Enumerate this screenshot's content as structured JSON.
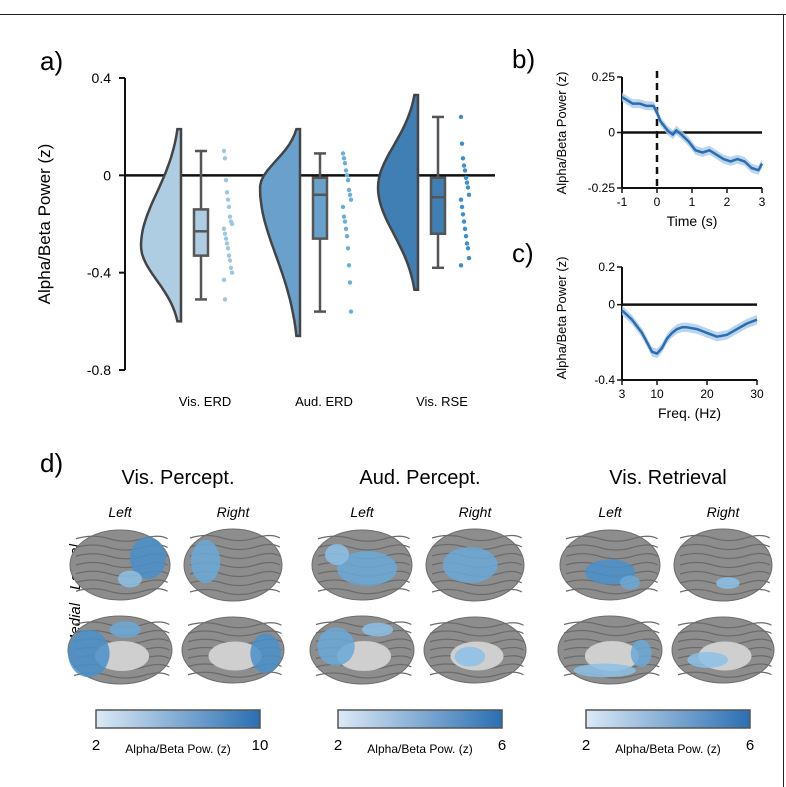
{
  "panels": {
    "a": {
      "label": "a)"
    },
    "b": {
      "label": "b)"
    },
    "c": {
      "label": "c)"
    },
    "d": {
      "label": "d)"
    }
  },
  "chart_data": [
    {
      "type": "violin-box-strip",
      "panel": "a",
      "ylabel": "Alpha/Beta Power (z)",
      "ylim": [
        -0.8,
        0.4
      ],
      "yticks": [
        0.4,
        0,
        -0.4,
        -0.8
      ],
      "ytick_labels": [
        "0.4",
        "0",
        "-0.4",
        "-0.8"
      ],
      "reference_line": 0,
      "categories": [
        "Vis. ERD",
        "Aud. ERD",
        "Vis. RSE"
      ],
      "colors": [
        "#aecde3",
        "#6aa1cc",
        "#3f7fb3"
      ],
      "point_colors": [
        "#9cc7e2",
        "#6aaed9",
        "#3a8fd0"
      ],
      "groups": [
        {
          "name": "Vis. ERD",
          "violin_range": [
            -0.6,
            0.19
          ],
          "violin_peak": -0.29,
          "box": {
            "whisker_low": -0.51,
            "q1": -0.33,
            "median": -0.23,
            "q3": -0.14,
            "whisker_high": 0.1
          },
          "points": [
            0.1,
            0.07,
            -0.02,
            -0.07,
            -0.1,
            -0.13,
            -0.17,
            -0.19,
            -0.2,
            -0.22,
            -0.24,
            -0.26,
            -0.28,
            -0.3,
            -0.33,
            -0.35,
            -0.38,
            -0.4,
            -0.43,
            -0.51
          ]
        },
        {
          "name": "Aud. ERD",
          "violin_range": [
            -0.66,
            0.19
          ],
          "violin_peak": -0.05,
          "box": {
            "whisker_low": -0.56,
            "q1": -0.26,
            "median": -0.08,
            "q3": -0.01,
            "whisker_high": 0.09
          },
          "points": [
            0.09,
            0.07,
            0.05,
            0.02,
            0.0,
            -0.02,
            -0.06,
            -0.08,
            -0.1,
            -0.13,
            -0.17,
            -0.19,
            -0.22,
            -0.25,
            -0.3,
            -0.37,
            -0.44,
            -0.56
          ]
        },
        {
          "name": "Vis. RSE",
          "violin_range": [
            -0.47,
            0.33
          ],
          "violin_peak": -0.05,
          "box": {
            "whisker_low": -0.38,
            "q1": -0.24,
            "median": -0.09,
            "q3": -0.01,
            "whisker_high": 0.24
          },
          "points": [
            0.24,
            0.13,
            0.07,
            0.04,
            0.02,
            -0.01,
            -0.03,
            -0.05,
            -0.08,
            -0.1,
            -0.13,
            -0.16,
            -0.19,
            -0.22,
            -0.25,
            -0.28,
            -0.3,
            -0.34,
            -0.37
          ]
        }
      ]
    },
    {
      "type": "line",
      "panel": "b",
      "ylabel": "Alpha/Beta Power (z)",
      "xlabel": "Time (s)",
      "xlim": [
        -1,
        3
      ],
      "ylim": [
        -0.25,
        0.25
      ],
      "xticks": [
        -1,
        0,
        1,
        2,
        3
      ],
      "xtick_labels": [
        "-1",
        "0",
        "1",
        "2",
        "3"
      ],
      "yticks": [
        0.25,
        0,
        -0.25
      ],
      "ytick_labels": [
        "0.25",
        "0",
        "-0.25"
      ],
      "reference_line": 0,
      "vline": 0,
      "series": [
        {
          "x": [
            -1,
            -0.9,
            -0.7,
            -0.5,
            -0.3,
            -0.1,
            0.0,
            0.1,
            0.2,
            0.3,
            0.45,
            0.55,
            0.7,
            0.9,
            1.1,
            1.3,
            1.5,
            1.7,
            1.9,
            2.1,
            2.3,
            2.5,
            2.7,
            2.9,
            3.0
          ],
          "y": [
            0.16,
            0.15,
            0.13,
            0.13,
            0.12,
            0.12,
            0.09,
            0.05,
            0.03,
            0.01,
            -0.01,
            0.01,
            -0.01,
            -0.04,
            -0.08,
            -0.09,
            -0.08,
            -0.1,
            -0.12,
            -0.13,
            -0.12,
            -0.13,
            -0.16,
            -0.17,
            -0.14
          ],
          "ci": 0.02
        }
      ]
    },
    {
      "type": "line",
      "panel": "c",
      "ylabel": "Alpha/Beta Power (z)",
      "xlabel": "Freq. (Hz)",
      "xlim": [
        3,
        30
      ],
      "ylim": [
        -0.4,
        0.2
      ],
      "xticks": [
        3,
        10,
        20,
        30
      ],
      "xtick_labels": [
        "3",
        "10",
        "20",
        "30"
      ],
      "yticks": [
        0.2,
        0,
        -0.4
      ],
      "ytick_labels": [
        "0.2",
        "0",
        "-0.4"
      ],
      "reference_line": 0,
      "series": [
        {
          "x": [
            3,
            5,
            7,
            8,
            9,
            10,
            11,
            12,
            13,
            14,
            15,
            16,
            18,
            20,
            22,
            24,
            26,
            28,
            30
          ],
          "y": [
            -0.03,
            -0.08,
            -0.15,
            -0.2,
            -0.25,
            -0.26,
            -0.23,
            -0.18,
            -0.15,
            -0.13,
            -0.12,
            -0.12,
            -0.13,
            -0.15,
            -0.17,
            -0.16,
            -0.13,
            -0.1,
            -0.08
          ],
          "ci": 0.025
        }
      ]
    }
  ],
  "brain_maps": {
    "row_labels": [
      "Lateral",
      "Medial"
    ],
    "hemisphere_labels": [
      "Left",
      "Right"
    ],
    "colorbar_label": "Alpha/Beta Pow. (z)",
    "groups": [
      {
        "title": "Vis. Percept.",
        "min_label": "2",
        "max_label": "10"
      },
      {
        "title": "Aud. Percept.",
        "min_label": "2",
        "max_label": "6"
      },
      {
        "title": "Vis. Retrieval",
        "min_label": "2",
        "max_label": "6"
      }
    ]
  }
}
